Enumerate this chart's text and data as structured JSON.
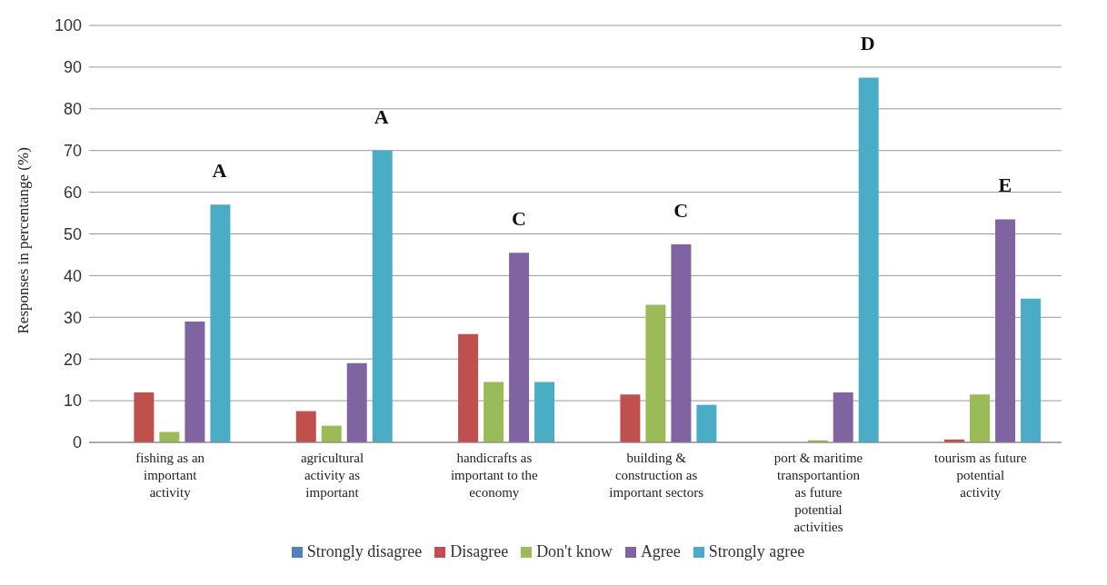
{
  "chart_data": {
    "type": "bar",
    "ylabel": "Responses in percentange  (%)",
    "categories": [
      "fishing as an important activity",
      "agricultural activity as important",
      "handicrafts as important to the economy",
      "building & construction as important sectors",
      "port & maritime transportantion as future potential activities",
      "tourism as future potential activity"
    ],
    "series": [
      {
        "name": "Strongly disagree",
        "color": "#4f81bd",
        "values": [
          0,
          0,
          0,
          0,
          0,
          0
        ]
      },
      {
        "name": "Disagree",
        "color": "#c0504d",
        "values": [
          12,
          7.5,
          26,
          11.5,
          0,
          0.7
        ]
      },
      {
        "name": "Don't know",
        "color": "#9bbb59",
        "values": [
          2.5,
          4,
          14.5,
          33,
          0.5,
          11.5
        ]
      },
      {
        "name": "Agree",
        "color": "#8064a2",
        "values": [
          29,
          19,
          45.5,
          47.5,
          12,
          53.5
        ]
      },
      {
        "name": "Strongly agree",
        "color": "#4bacc6",
        "values": [
          57,
          70,
          14.5,
          9,
          87.5,
          34.5
        ]
      }
    ],
    "annotations": [
      "A",
      "A",
      "C",
      "C",
      "D",
      "E"
    ],
    "ylim": [
      0,
      100
    ],
    "yticks": [
      0,
      10,
      20,
      30,
      40,
      50,
      60,
      70,
      80,
      90,
      100
    ],
    "grid": "y",
    "legend": "bottom"
  }
}
